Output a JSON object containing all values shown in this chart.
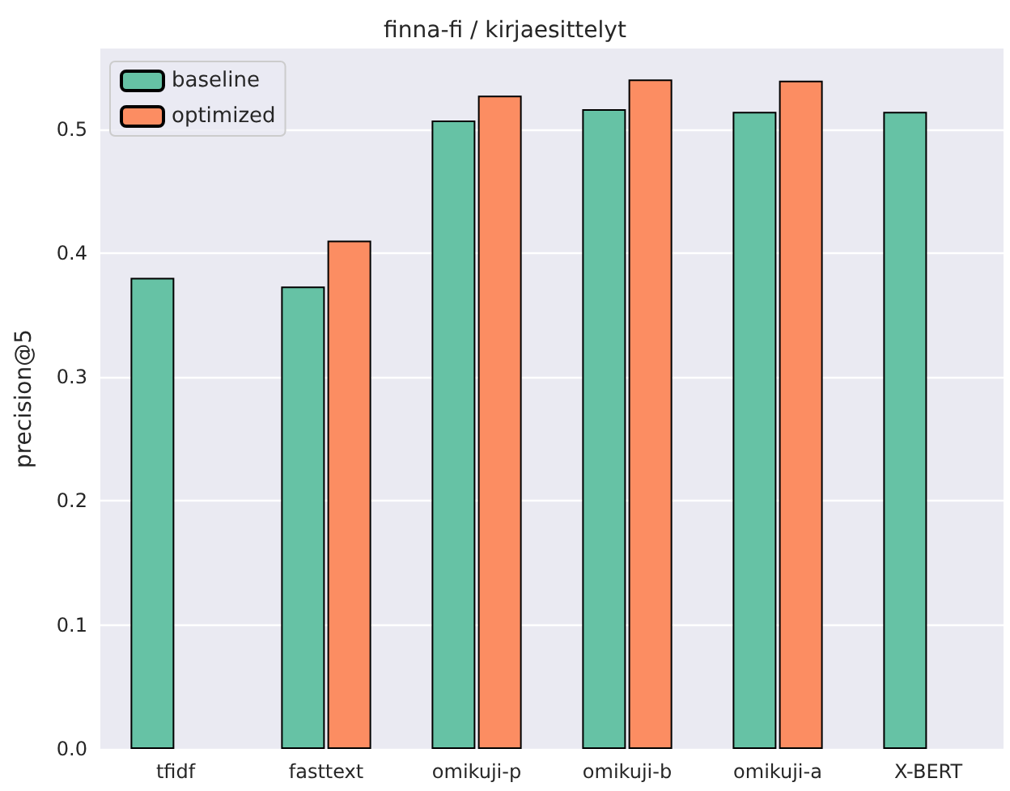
{
  "chart_data": {
    "type": "bar",
    "title": "finna-fi / kirjaesittelyt",
    "ylabel": "precision@5",
    "categories": [
      "tfidf",
      "fasttext",
      "omikuji-p",
      "omikuji-b",
      "omikuji-a",
      "X-BERT"
    ],
    "series": [
      {
        "name": "baseline",
        "color": "#66c2a5",
        "values": [
          0.38,
          0.373,
          0.507,
          0.516,
          0.514,
          0.514
        ]
      },
      {
        "name": "optimized",
        "color": "#fc8d62",
        "values": [
          null,
          0.41,
          0.527,
          0.54,
          0.539,
          null
        ]
      }
    ],
    "ylim": [
      0,
      0.565
    ],
    "yticks": [
      {
        "value": 0,
        "label": "0.0"
      },
      0.1,
      0.2,
      0.3,
      0.4,
      0.5
    ],
    "grid": "y",
    "legend": "top left"
  }
}
